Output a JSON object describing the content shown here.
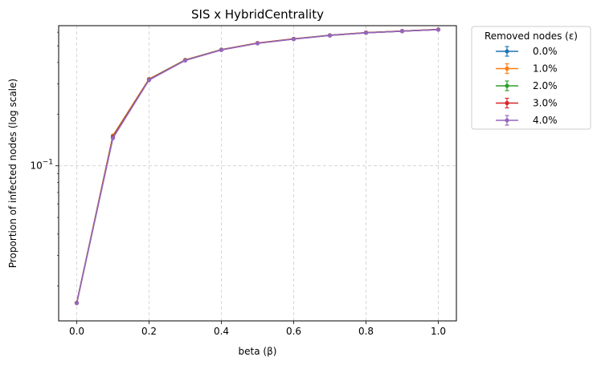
{
  "chart_data": {
    "type": "line",
    "title": "SIS x HybridCentrality",
    "xlabel": "beta (β)",
    "ylabel": "Proportion of infected nodes (log scale)",
    "yscale": "log",
    "xlim": [
      -0.05,
      1.05
    ],
    "ylim": [
      0.0125,
      0.655
    ],
    "x_ticks": [
      "0.0",
      "0.2",
      "0.4",
      "0.6",
      "0.8",
      "1.0"
    ],
    "y_ticks": [
      {
        "value": 0.1,
        "base": "10",
        "exp": "−1"
      }
    ],
    "grid": true,
    "legend": {
      "title": "Removed nodes (ε)",
      "placement": "outside-top-right"
    },
    "x": [
      0.0,
      0.1,
      0.2,
      0.3,
      0.4,
      0.5,
      0.6,
      0.7,
      0.8,
      0.9,
      1.0
    ],
    "series": [
      {
        "name": "0.0%",
        "color": "#1f77b4",
        "values": [
          0.0159,
          0.146,
          0.318,
          0.412,
          0.474,
          0.518,
          0.548,
          0.575,
          0.596,
          0.609,
          0.622
        ]
      },
      {
        "name": "1.0%",
        "color": "#ff7f0e",
        "values": [
          0.0159,
          0.15,
          0.32,
          0.414,
          0.475,
          0.519,
          0.549,
          0.576,
          0.597,
          0.61,
          0.623
        ]
      },
      {
        "name": "2.0%",
        "color": "#2ca02c",
        "values": [
          0.0159,
          0.148,
          0.319,
          0.413,
          0.475,
          0.518,
          0.548,
          0.576,
          0.596,
          0.609,
          0.622
        ]
      },
      {
        "name": "3.0%",
        "color": "#d62728",
        "values": [
          0.0159,
          0.147,
          0.318,
          0.412,
          0.474,
          0.518,
          0.548,
          0.575,
          0.596,
          0.609,
          0.622
        ]
      },
      {
        "name": "4.0%",
        "color": "#9467bd",
        "values": [
          0.0159,
          0.145,
          0.316,
          0.411,
          0.473,
          0.517,
          0.547,
          0.575,
          0.595,
          0.609,
          0.621
        ]
      }
    ]
  }
}
